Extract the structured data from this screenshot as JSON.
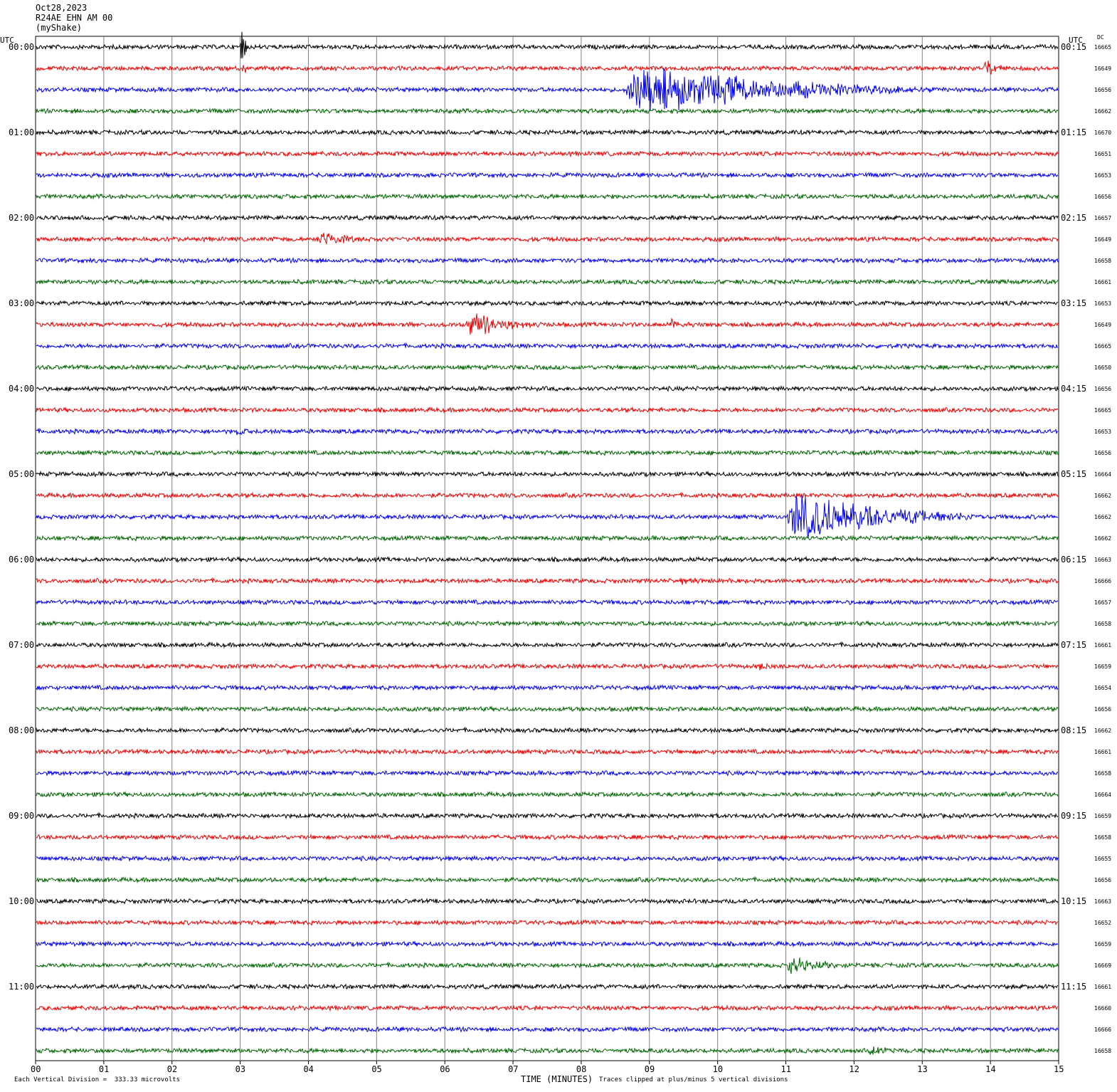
{
  "header": {
    "date": "Oct28,2023",
    "station": "R24AE EHN AM 00",
    "network": "(myShake)"
  },
  "utc_left": "UTC",
  "utc_right": "UTC",
  "dc_label": "DC",
  "footer": {
    "scale_text": "Each Vertical Division =  333.33 microvolts",
    "xlabel": "TIME (MINUTES)",
    "clip_text": "Traces clipped at plus/minus 5 vertical divisions"
  },
  "colors": {
    "cycle": [
      "#000000",
      "#ee0000",
      "#0000ee",
      "#006400"
    ],
    "grid": "#808080"
  },
  "chart_data": {
    "type": "line",
    "xlabel": "TIME (MINUTES)",
    "xlim": [
      0,
      15
    ],
    "x_ticks": [
      "00",
      "01",
      "02",
      "03",
      "04",
      "05",
      "06",
      "07",
      "08",
      "09",
      "10",
      "11",
      "12",
      "13",
      "14",
      "15"
    ],
    "rows": 48,
    "minutes_per_row": 15,
    "left_labels": [
      "00:00",
      "01:00",
      "02:00",
      "03:00",
      "04:00",
      "05:00",
      "06:00",
      "07:00",
      "08:00",
      "09:00",
      "10:00",
      "11:00"
    ],
    "right_labels": [
      "00:15",
      "01:15",
      "02:15",
      "03:15",
      "04:15",
      "05:15",
      "06:15",
      "07:15",
      "08:15",
      "09:15",
      "10:15",
      "11:15"
    ],
    "dc_offsets": [
      "16665",
      "16649",
      "16656",
      "16662",
      "16670",
      "16651",
      "16653",
      "16656",
      "16657",
      "16649",
      "16658",
      "16661",
      "16653",
      "16649",
      "16665",
      "16650",
      "16656",
      "16665",
      "16653",
      "16656",
      "16664",
      "16662",
      "16662",
      "16662",
      "16663",
      "16666",
      "16657",
      "16658",
      "16661",
      "16659",
      "16654",
      "16656",
      "16662",
      "16661",
      "16658",
      "16664",
      "16659",
      "16658",
      "16655",
      "16656",
      "16663",
      "16652",
      "16659",
      "16669",
      "16661",
      "16660",
      "16666",
      "16658"
    ],
    "events": [
      {
        "row": 0,
        "start_min": 3.0,
        "dur_min": 0.15,
        "amp": 4
      },
      {
        "row": 1,
        "start_min": 3.02,
        "dur_min": 0.1,
        "amp": 3
      },
      {
        "row": 1,
        "start_min": 13.9,
        "dur_min": 0.5,
        "amp": 1.8
      },
      {
        "row": 2,
        "start_min": 8.62,
        "dur_min": 4.5,
        "amp": 5,
        "clipped": true
      },
      {
        "row": 9,
        "start_min": 4.1,
        "dur_min": 1.3,
        "amp": 1.5
      },
      {
        "row": 13,
        "start_min": 6.3,
        "dur_min": 1.4,
        "amp": 2.5
      },
      {
        "row": 13,
        "start_min": 9.3,
        "dur_min": 0.4,
        "amp": 1.2
      },
      {
        "row": 18,
        "start_min": 2.9,
        "dur_min": 0.4,
        "amp": 1.2
      },
      {
        "row": 22,
        "start_min": 11.0,
        "dur_min": 3.0,
        "amp": 5,
        "clipped": true
      },
      {
        "row": 25,
        "start_min": 9.4,
        "dur_min": 0.8,
        "amp": 1.0
      },
      {
        "row": 29,
        "start_min": 10.6,
        "dur_min": 0.3,
        "amp": 1.2
      },
      {
        "row": 43,
        "start_min": 11.0,
        "dur_min": 1.2,
        "amp": 2.0
      },
      {
        "row": 47,
        "start_min": 12.2,
        "dur_min": 0.6,
        "amp": 1.4
      }
    ]
  }
}
